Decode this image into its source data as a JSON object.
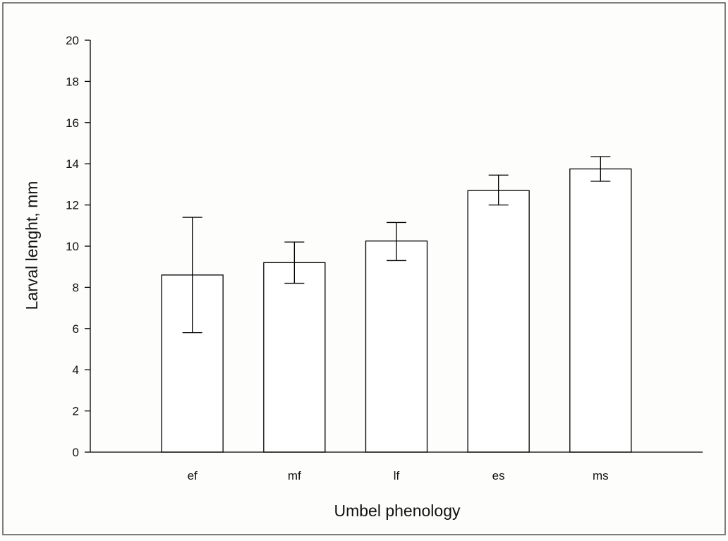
{
  "chart_data": {
    "type": "bar",
    "title": "",
    "xlabel": "Umbel phenology",
    "ylabel": "Larval lenght, mm",
    "categories": [
      "ef",
      "mf",
      "lf",
      "es",
      "ms"
    ],
    "values": [
      8.6,
      9.2,
      10.25,
      12.7,
      13.75
    ],
    "error_upper": [
      11.4,
      10.2,
      11.15,
      13.45,
      14.35
    ],
    "error_lower": [
      5.8,
      8.2,
      9.3,
      12.0,
      13.15
    ],
    "ylim": [
      0,
      20
    ],
    "yticks": [
      0,
      2,
      4,
      6,
      8,
      10,
      12,
      14,
      16,
      18,
      20
    ],
    "grid": false,
    "legend": "none",
    "bar_fill": "#ffffff",
    "bar_stroke": "#000000"
  }
}
